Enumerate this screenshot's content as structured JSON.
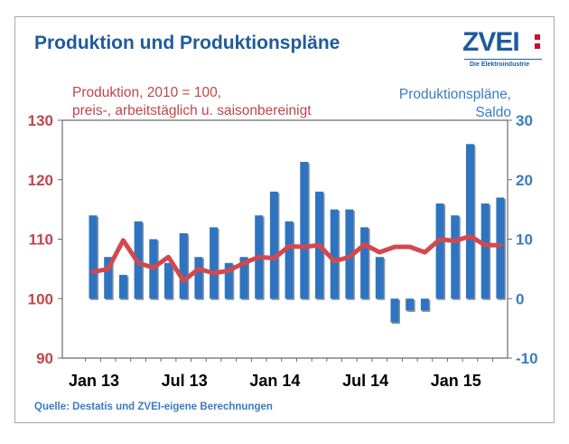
{
  "title": "Produktion und Produktionspläne",
  "logo": {
    "text": "ZVEI",
    "subtitle": "Die Elektroindustrie"
  },
  "source": "Quelle: Destatis und ZVEI-eigene Berechnungen",
  "chart_data": {
    "type": "bar",
    "left_axis_label": [
      "Produktion, 2010 = 100,",
      "preis-, arbeitstäglich u. saisonbereinigt"
    ],
    "right_axis_label": [
      "Produktionspläne,",
      "Saldo"
    ],
    "left_ylim": [
      90,
      130
    ],
    "left_ticks": [
      "130",
      "120",
      "110",
      "100",
      "90"
    ],
    "right_ylim": [
      -10,
      30
    ],
    "right_ticks": [
      "30",
      "20",
      "10",
      "0",
      "-10"
    ],
    "x_tick_labels": [
      "Jan 13",
      "Jul 13",
      "Jan 14",
      "Jul 14",
      "Jan 15"
    ],
    "x_tick_months": [
      0,
      6,
      12,
      18,
      24
    ],
    "months": 29,
    "grid": false,
    "series": [
      {
        "kind": "bar",
        "axis": "right",
        "values": [
          14,
          7,
          4,
          13,
          10,
          6,
          11,
          7,
          12,
          6,
          7,
          14,
          18,
          13,
          23,
          18,
          15,
          15,
          12,
          7,
          -4,
          -2,
          -2,
          16,
          14,
          26,
          16,
          17
        ],
        "color": "#2e74c0"
      },
      {
        "kind": "line",
        "axis": "left",
        "values": [
          104.5,
          105,
          109.8,
          106,
          105.2,
          107,
          103,
          105,
          104.3,
          104.7,
          106,
          107,
          106.8,
          108.8,
          108.7,
          109,
          106.3,
          107,
          109.1,
          107.8,
          108.7,
          108.7,
          107.8,
          110,
          109.7,
          110.5,
          109,
          109
        ],
        "color": "#d3484e"
      }
    ]
  }
}
